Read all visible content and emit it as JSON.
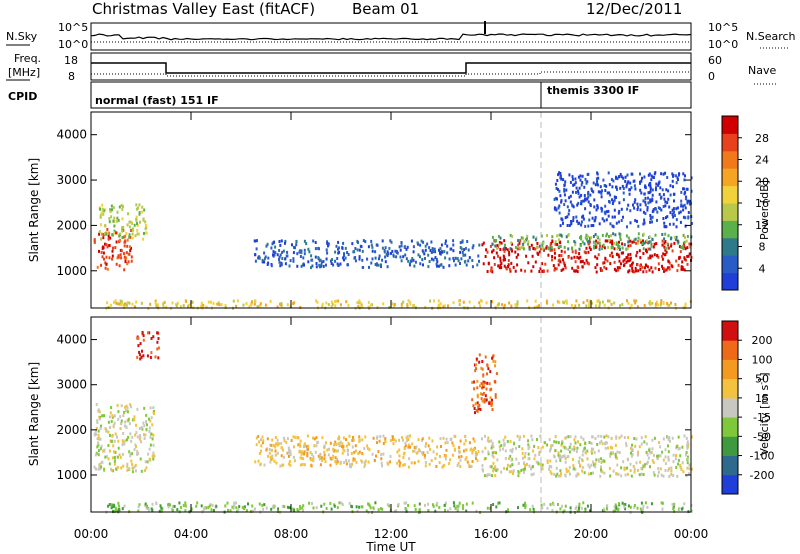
{
  "header": {
    "title": "Christmas Valley East (fitACF)",
    "beam": "Beam 01",
    "date": "12/Dec/2011"
  },
  "top_panels": {
    "nsky_label": "N.Sky",
    "nsearch_label": "N.Search",
    "nsky_ticks": [
      "10^5",
      "10^0"
    ],
    "nsearch_ticks": [
      "10^5",
      "10^0"
    ],
    "freq_label_line1": "Freq.",
    "freq_label_line2": "[MHz]",
    "freq_ticks": [
      "18",
      "8"
    ],
    "nave_label": "Nave",
    "nave_ticks": [
      "60",
      "0"
    ],
    "cpid_label": "CPID",
    "cpid_mode1": "normal (fast) 151 IF",
    "cpid_mode2": "themis 3300 IF"
  },
  "chart_data": [
    {
      "type": "heatmap",
      "name": "power",
      "ylabel": "Slant Range [km]",
      "yticks": [
        "4000",
        "3000",
        "2000",
        "1000"
      ],
      "ylim": [
        180,
        4500
      ],
      "xlabel": "",
      "xlim": [
        0,
        24
      ],
      "colorbar": {
        "label": "Power [dB]",
        "ticks": [
          "28",
          "24",
          "20",
          "16",
          "12",
          "8",
          "4"
        ],
        "colors": [
          "#1f3fd8",
          "#2a5cc8",
          "#2f7a8a",
          "#5ab04a",
          "#b8c84a",
          "#f2d23a",
          "#f5a524",
          "#f07a1a",
          "#e8421c",
          "#d00000"
        ]
      },
      "regions": [
        {
          "t0": 0.1,
          "t1": 1.6,
          "r0": 1050,
          "r1": 1950,
          "level": 8
        },
        {
          "t0": 0.3,
          "t1": 2.2,
          "r0": 1700,
          "r1": 2500,
          "level": 4
        },
        {
          "t0": 6.5,
          "t1": 15.5,
          "r0": 1100,
          "r1": 1700,
          "level": 1
        },
        {
          "t0": 15.6,
          "t1": 24.0,
          "r0": 1000,
          "r1": 1700,
          "level": 9
        },
        {
          "t0": 16.0,
          "t1": 24.0,
          "r0": 1500,
          "r1": 1850,
          "level": 3
        },
        {
          "t0": 18.5,
          "t1": 24.0,
          "r0": 2000,
          "r1": 3200,
          "level": 0
        },
        {
          "t0": 0.5,
          "t1": 24.0,
          "r0": 200,
          "r1": 380,
          "level": 5
        }
      ],
      "terminator_times": [
        18.0
      ]
    },
    {
      "type": "heatmap",
      "name": "velocity",
      "ylabel": "Slant Range [km]",
      "yticks": [
        "4000",
        "3000",
        "2000",
        "1000"
      ],
      "ylim": [
        180,
        4500
      ],
      "xlabel": "Time UT",
      "xticks": [
        "00:00",
        "04:00",
        "08:00",
        "12:00",
        "16:00",
        "20:00",
        "00:00"
      ],
      "xlim": [
        0,
        24
      ],
      "colorbar": {
        "label": "Velocity [m s^-1]",
        "ticks": [
          "200",
          "100",
          "50",
          "15",
          "-15",
          "-50",
          "-100",
          "-200"
        ],
        "colors": [
          "#1f3fd8",
          "#2e6a8e",
          "#3f9a3f",
          "#7ec83a",
          "#c8c8c0",
          "#f2c240",
          "#f59a20",
          "#ef6a18",
          "#d01010"
        ]
      },
      "regions": [
        {
          "t0": 0.1,
          "t1": 2.5,
          "r0": 1100,
          "r1": 2600,
          "level": 4
        },
        {
          "t0": 1.8,
          "t1": 2.7,
          "r0": 3600,
          "r1": 4200,
          "level": 8
        },
        {
          "t0": 6.5,
          "t1": 15.5,
          "r0": 1200,
          "r1": 1900,
          "level": 5
        },
        {
          "t0": 15.6,
          "t1": 24.0,
          "r0": 1000,
          "r1": 1900,
          "level": 4
        },
        {
          "t0": 0.5,
          "t1": 24.0,
          "r0": 200,
          "r1": 420,
          "level": 3
        },
        {
          "t0": 15.2,
          "t1": 16.2,
          "r0": 2400,
          "r1": 3700,
          "level": 7
        }
      ],
      "terminator_times": [
        18.0
      ]
    }
  ]
}
